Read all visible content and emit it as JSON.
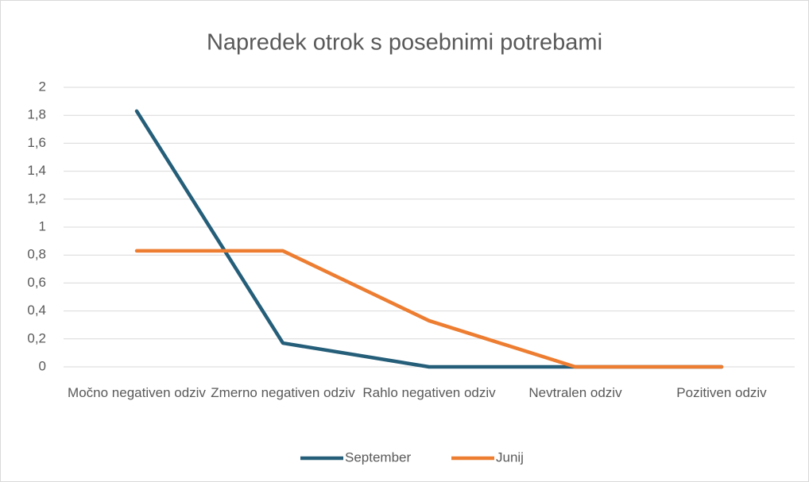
{
  "chart_data": {
    "type": "line",
    "title": "Napredek otrok s posebnimi potrebami",
    "categories": [
      "Močno negativen odziv",
      "Zmerno negativen odziv",
      "Rahlo negativen odziv",
      "Nevtralen odziv",
      "Pozitiven odziv"
    ],
    "series": [
      {
        "name": "September",
        "color": "#255e79",
        "values": [
          1.83,
          0.17,
          0,
          0,
          0
        ]
      },
      {
        "name": "Junij",
        "color": "#ed7d31",
        "values": [
          0.83,
          0.83,
          0.33,
          0,
          0
        ]
      }
    ],
    "ylim": [
      0,
      2
    ],
    "yticks": [
      0,
      {
        "value": 0.2,
        "label": "0,2"
      },
      {
        "value": 0.4,
        "label": "0,4"
      },
      {
        "value": 0.6,
        "label": "0,6"
      },
      {
        "value": 0.8,
        "label": "0,8"
      },
      1,
      {
        "value": 1.2,
        "label": "1,2"
      },
      {
        "value": 1.4,
        "label": "1,4"
      },
      {
        "value": 1.6,
        "label": "1,6"
      },
      {
        "value": 1.8,
        "label": "1,8"
      },
      2
    ],
    "grid": true,
    "legend": "bottom"
  }
}
